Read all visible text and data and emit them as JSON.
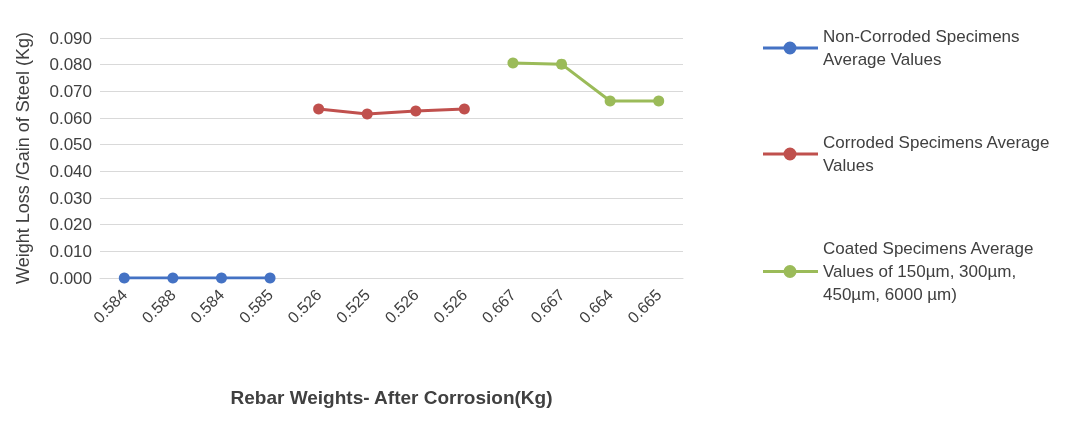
{
  "chart_data": {
    "type": "line",
    "xlabel": "Rebar Weights- After Corrosion(Kg)",
    "ylabel": "Weight Loss /Gain of Steel (Kg)",
    "categories": [
      "0.584",
      "0.588",
      "0.584",
      "0.585",
      "0.526",
      "0.525",
      "0.526",
      "0.526",
      "0.667",
      "0.667",
      "0.664",
      "0.665"
    ],
    "series": [
      {
        "name": "Non-Corroded Specimens Average Values",
        "color": "#4472c4",
        "values": [
          0,
          0,
          0,
          0,
          null,
          null,
          null,
          null,
          null,
          null,
          null,
          null
        ]
      },
      {
        "name": "Corroded Specimens Average Values",
        "color": "#c0504d",
        "values": [
          null,
          null,
          null,
          null,
          0.0634,
          0.0615,
          0.0626,
          0.0634,
          null,
          null,
          null,
          null
        ]
      },
      {
        "name": "Coated Specimens Average Values of 150µm, 300µm, 450µm, 6000 µm)",
        "color": "#9bbb59",
        "values": [
          null,
          null,
          null,
          null,
          null,
          null,
          null,
          null,
          0.0806,
          0.0802,
          0.0664,
          0.0664
        ]
      }
    ],
    "ylim": [
      0,
      0.09
    ],
    "yticks": [
      {
        "value": 0,
        "label": "0.000"
      },
      {
        "value": 0.01,
        "label": "0.010"
      },
      {
        "value": 0.02,
        "label": "0.020"
      },
      {
        "value": 0.03,
        "label": "0.030"
      },
      {
        "value": 0.04,
        "label": "0.040"
      },
      {
        "value": 0.05,
        "label": "0.050"
      },
      {
        "value": 0.06,
        "label": "0.060"
      },
      {
        "value": 0.07,
        "label": "0.070"
      },
      {
        "value": 0.08,
        "label": "0.080"
      },
      {
        "value": 0.09,
        "label": "0.090"
      }
    ],
    "grid": "y",
    "legend": "right",
    "marker": "circle",
    "line_style": "solid"
  }
}
